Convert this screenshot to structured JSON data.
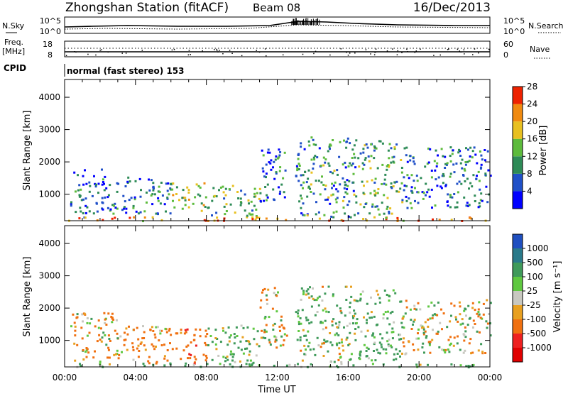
{
  "header": {
    "station": "Zhongshan Station (fitACF)",
    "beam": "Beam 08",
    "date": "16/Dec/2013"
  },
  "strips": {
    "nsky": {
      "label": "N.Sky",
      "ticks_left": [
        "10^5",
        "10^0"
      ]
    },
    "nsearch": {
      "label": "N.Search",
      "ticks_right": [
        "10^5",
        "10^0"
      ]
    },
    "freq": {
      "label_top": "Freq.",
      "label_bottom": "[MHz]",
      "ticks": [
        "18",
        "8"
      ]
    },
    "nave": {
      "label": "Nave",
      "ticks": [
        "60",
        "0"
      ]
    },
    "cpid": {
      "label": "CPID",
      "value": "normal (fast stereo) 153"
    }
  },
  "x_axis": {
    "title": "Time UT",
    "ticks": [
      "00:00",
      "04:00",
      "08:00",
      "12:00",
      "16:00",
      "20:00",
      "00:00"
    ]
  },
  "y_axis": {
    "title": "Slant Range [km]",
    "ticks": [
      "1000",
      "2000",
      "3000",
      "4000"
    ]
  },
  "colorbars": {
    "power": {
      "title": "Power [dB]",
      "labels": [
        "4",
        "8",
        "12",
        "16",
        "20",
        "24",
        "28"
      ],
      "colors": [
        "#0000ff",
        "#2050c8",
        "#2e8b57",
        "#5dbb3c",
        "#e8c020",
        "#f08a10",
        "#ee2200"
      ]
    },
    "velocity": {
      "title": "Velocity [m s⁻¹]",
      "labels": [
        "1000",
        "500",
        "100",
        "25",
        "-25",
        "-100",
        "-500",
        "-1000"
      ],
      "colors": [
        "#1f4fc0",
        "#2a7a8a",
        "#3f9a5a",
        "#5fc840",
        "#c8c8c0",
        "#e8a020",
        "#f07010",
        "#ee2020",
        "#e00000"
      ]
    }
  },
  "chart_data": [
    {
      "type": "heatmap",
      "title": "Power",
      "xlabel": "Time UT",
      "ylabel": "Slant Range [km]",
      "xlim": [
        0,
        24
      ],
      "ylim": [
        180,
        4550
      ],
      "colorbar_range": [
        0,
        30
      ],
      "units": "dB",
      "regions": [
        {
          "t": [
            0.3,
            2.5
          ],
          "r": [
            300,
            1800
          ],
          "v": 8
        },
        {
          "t": [
            2.5,
            6.0
          ],
          "r": [
            400,
            1600
          ],
          "v": 10
        },
        {
          "t": [
            6.0,
            8.0
          ],
          "r": [
            500,
            1400
          ],
          "v": 18
        },
        {
          "t": [
            8.0,
            11.0
          ],
          "r": [
            300,
            1300
          ],
          "v": 14
        },
        {
          "t": [
            11.0,
            12.5
          ],
          "r": [
            800,
            2600
          ],
          "v": 9
        },
        {
          "t": [
            13.0,
            16.5
          ],
          "r": [
            300,
            2800
          ],
          "v": 12
        },
        {
          "t": [
            16.5,
            19.0
          ],
          "r": [
            400,
            2700
          ],
          "v": 14
        },
        {
          "t": [
            19.0,
            24.0
          ],
          "r": [
            600,
            2500
          ],
          "v": 10
        },
        {
          "t": [
            0.0,
            24.0
          ],
          "r": [
            200,
            320
          ],
          "v": 24
        }
      ]
    },
    {
      "type": "heatmap",
      "title": "Velocity",
      "xlabel": "Time UT",
      "ylabel": "Slant Range [km]",
      "xlim": [
        0,
        24
      ],
      "ylim": [
        180,
        4550
      ],
      "colorbar_range": [
        -1000,
        1000
      ],
      "units": "m s^-1",
      "regions": [
        {
          "t": [
            0.3,
            3.0
          ],
          "r": [
            300,
            1900
          ],
          "v": -120
        },
        {
          "t": [
            3.0,
            6.0
          ],
          "r": [
            300,
            1500
          ],
          "v": -200
        },
        {
          "t": [
            6.0,
            8.0
          ],
          "r": [
            300,
            1400
          ],
          "v": -300
        },
        {
          "t": [
            8.0,
            11.0
          ],
          "r": [
            300,
            1500
          ],
          "v": 150
        },
        {
          "t": [
            11.0,
            12.5
          ],
          "r": [
            800,
            2700
          ],
          "v": -80
        },
        {
          "t": [
            13.0,
            16.5
          ],
          "r": [
            300,
            2700
          ],
          "v": 120
        },
        {
          "t": [
            16.5,
            19.0
          ],
          "r": [
            400,
            2600
          ],
          "v": 200
        },
        {
          "t": [
            19.0,
            24.0
          ],
          "r": [
            600,
            2300
          ],
          "v": 0
        },
        {
          "t": [
            0.0,
            24.0
          ],
          "r": [
            200,
            320
          ],
          "v": 180
        }
      ]
    }
  ]
}
